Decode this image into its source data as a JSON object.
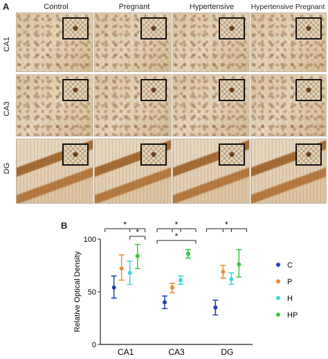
{
  "panel_a": {
    "letter": "A",
    "columns": [
      "Control",
      "Pregnant",
      "Hypertensive",
      "Hypertensive Pregnant"
    ],
    "rows": [
      "CA1",
      "CA3",
      "DG"
    ]
  },
  "panel_b": {
    "letter": "B"
  },
  "chart_data": {
    "type": "scatter",
    "subtype": "mean-with-error-bars",
    "title": "",
    "xlabel": "",
    "ylabel": "Relative Optical Density",
    "ylim": [
      0,
      100
    ],
    "yticks": [
      0,
      50,
      100
    ],
    "categories": [
      "CA1",
      "CA3",
      "DG"
    ],
    "series": [
      {
        "name": "C",
        "color": "#1f3fb0",
        "mean": [
          54,
          40,
          35
        ],
        "err_low": [
          44,
          34,
          28
        ],
        "err_high": [
          65,
          46,
          42
        ]
      },
      {
        "name": "P",
        "color": "#f08a35",
        "mean": [
          72,
          54,
          69
        ],
        "err_low": [
          61,
          49,
          63
        ],
        "err_high": [
          85,
          58,
          75
        ]
      },
      {
        "name": "H",
        "color": "#3ed6d6",
        "mean": [
          68,
          61,
          62
        ],
        "err_low": [
          57,
          57,
          57
        ],
        "err_high": [
          79,
          65,
          68
        ]
      },
      {
        "name": "HP",
        "color": "#3cc43c",
        "mean": [
          84,
          86,
          76
        ],
        "err_low": [
          72,
          82,
          64
        ],
        "err_high": [
          95,
          90,
          90
        ]
      }
    ],
    "significance_marker": "*",
    "legend_position": "right",
    "grid": false
  }
}
